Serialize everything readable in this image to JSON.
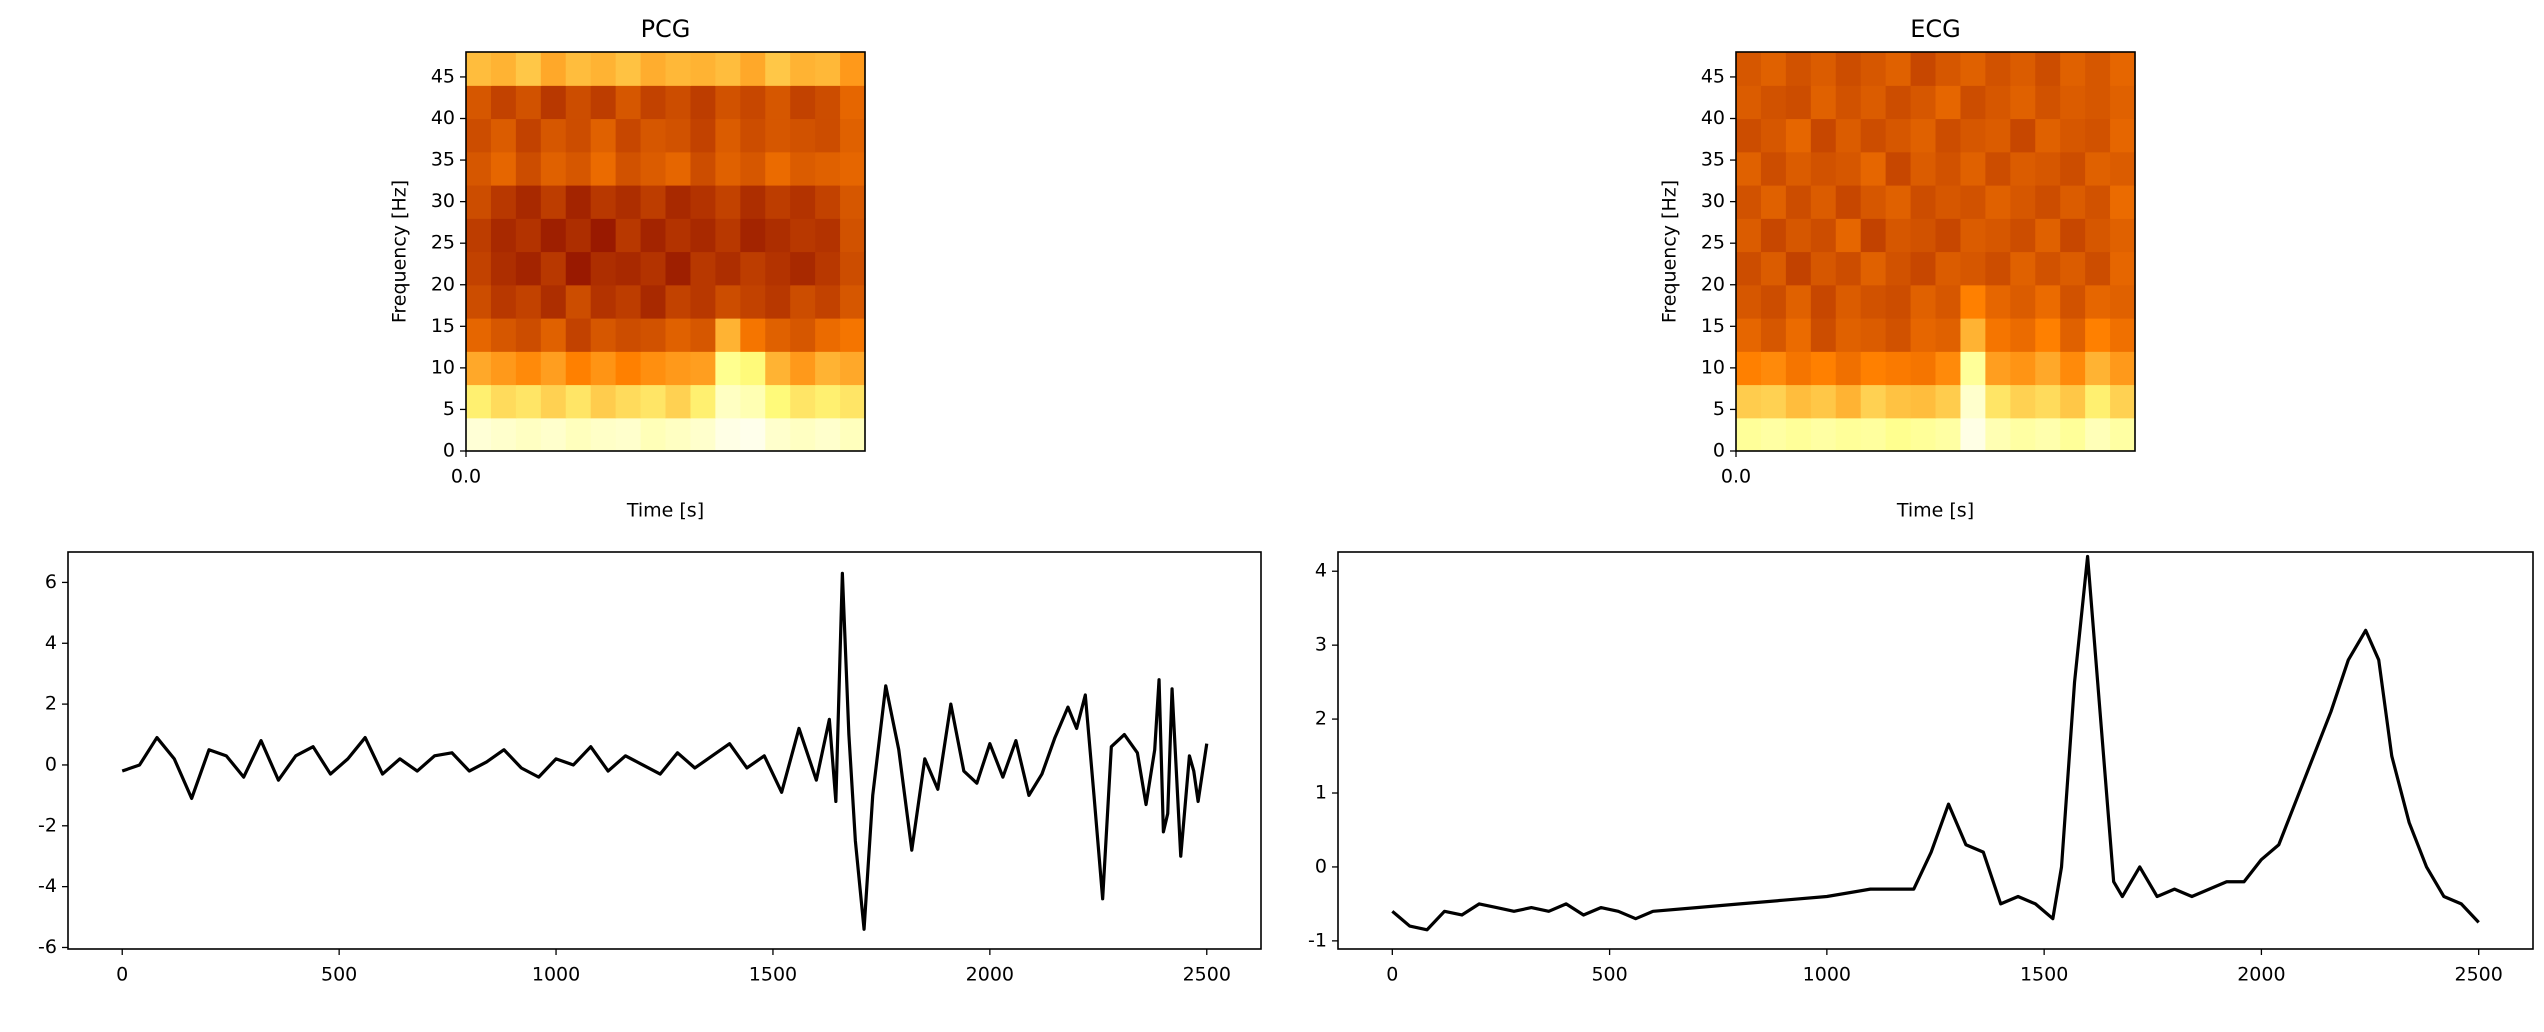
{
  "chart_data": [
    {
      "type": "heatmap",
      "title": "PCG",
      "xlabel": "Time [s]",
      "ylabel": "Frequency [Hz]",
      "cmap": "afmhot",
      "xlim": [
        0,
        5
      ],
      "xticks": [
        {
          "value": 0,
          "label": "0.0"
        }
      ],
      "ylim": [
        0,
        48
      ],
      "yticks": [
        0,
        5,
        10,
        15,
        20,
        25,
        30,
        35,
        40,
        45
      ],
      "z": [
        [
          0.92,
          0.9,
          0.88,
          0.9,
          0.87,
          0.89,
          0.9,
          0.86,
          0.88,
          0.9,
          0.95,
          0.96,
          0.9,
          0.88,
          0.9,
          0.87
        ],
        [
          0.72,
          0.68,
          0.7,
          0.66,
          0.7,
          0.65,
          0.68,
          0.7,
          0.66,
          0.72,
          0.88,
          0.85,
          0.74,
          0.7,
          0.72,
          0.7
        ],
        [
          0.58,
          0.55,
          0.52,
          0.56,
          0.5,
          0.54,
          0.5,
          0.53,
          0.55,
          0.56,
          0.78,
          0.74,
          0.6,
          0.55,
          0.6,
          0.58
        ],
        [
          0.45,
          0.42,
          0.4,
          0.44,
          0.38,
          0.42,
          0.4,
          0.41,
          0.44,
          0.42,
          0.6,
          0.48,
          0.44,
          0.42,
          0.46,
          0.48
        ],
        [
          0.4,
          0.36,
          0.38,
          0.34,
          0.4,
          0.35,
          0.37,
          0.33,
          0.38,
          0.36,
          0.4,
          0.38,
          0.36,
          0.4,
          0.38,
          0.42
        ],
        [
          0.38,
          0.34,
          0.32,
          0.36,
          0.3,
          0.34,
          0.33,
          0.35,
          0.31,
          0.36,
          0.34,
          0.37,
          0.35,
          0.33,
          0.36,
          0.4
        ],
        [
          0.37,
          0.33,
          0.35,
          0.31,
          0.34,
          0.3,
          0.36,
          0.32,
          0.35,
          0.33,
          0.36,
          0.32,
          0.34,
          0.36,
          0.35,
          0.41
        ],
        [
          0.4,
          0.36,
          0.33,
          0.37,
          0.32,
          0.36,
          0.34,
          0.37,
          0.33,
          0.35,
          0.38,
          0.34,
          0.37,
          0.35,
          0.38,
          0.42
        ],
        [
          0.42,
          0.45,
          0.4,
          0.44,
          0.42,
          0.46,
          0.41,
          0.43,
          0.45,
          0.4,
          0.44,
          0.42,
          0.46,
          0.43,
          0.44,
          0.45
        ],
        [
          0.4,
          0.43,
          0.38,
          0.42,
          0.4,
          0.44,
          0.39,
          0.42,
          0.41,
          0.38,
          0.43,
          0.4,
          0.42,
          0.41,
          0.4,
          0.44
        ],
        [
          0.42,
          0.38,
          0.41,
          0.36,
          0.4,
          0.37,
          0.42,
          0.38,
          0.4,
          0.37,
          0.41,
          0.39,
          0.42,
          0.38,
          0.4,
          0.45
        ],
        [
          0.62,
          0.6,
          0.64,
          0.58,
          0.62,
          0.6,
          0.63,
          0.59,
          0.61,
          0.6,
          0.62,
          0.58,
          0.64,
          0.6,
          0.61,
          0.55
        ]
      ]
    },
    {
      "type": "heatmap",
      "title": "ECG",
      "xlabel": "Time [s]",
      "ylabel": "Frequency [Hz]",
      "cmap": "afmhot",
      "xlim": [
        0,
        5
      ],
      "xticks": [
        {
          "value": 0,
          "label": "0.0"
        }
      ],
      "ylim": [
        0,
        48
      ],
      "yticks": [
        0,
        5,
        10,
        15,
        20,
        25,
        30,
        35,
        40,
        45
      ],
      "z": [
        [
          0.8,
          0.82,
          0.8,
          0.82,
          0.8,
          0.81,
          0.78,
          0.8,
          0.82,
          0.95,
          0.85,
          0.82,
          0.84,
          0.8,
          0.86,
          0.82
        ],
        [
          0.65,
          0.66,
          0.62,
          0.64,
          0.6,
          0.66,
          0.63,
          0.62,
          0.65,
          0.9,
          0.7,
          0.66,
          0.68,
          0.64,
          0.72,
          0.66
        ],
        [
          0.5,
          0.52,
          0.48,
          0.5,
          0.47,
          0.5,
          0.49,
          0.48,
          0.52,
          0.8,
          0.56,
          0.54,
          0.58,
          0.52,
          0.6,
          0.55
        ],
        [
          0.45,
          0.42,
          0.46,
          0.4,
          0.44,
          0.43,
          0.41,
          0.45,
          0.44,
          0.6,
          0.48,
          0.46,
          0.5,
          0.44,
          0.5,
          0.47
        ],
        [
          0.42,
          0.4,
          0.44,
          0.39,
          0.43,
          0.41,
          0.4,
          0.44,
          0.42,
          0.5,
          0.45,
          0.43,
          0.46,
          0.41,
          0.45,
          0.44
        ],
        [
          0.4,
          0.43,
          0.38,
          0.42,
          0.4,
          0.44,
          0.41,
          0.39,
          0.43,
          0.42,
          0.4,
          0.44,
          0.41,
          0.43,
          0.4,
          0.45
        ],
        [
          0.43,
          0.39,
          0.42,
          0.4,
          0.45,
          0.38,
          0.42,
          0.41,
          0.39,
          0.43,
          0.42,
          0.4,
          0.44,
          0.39,
          0.42,
          0.44
        ],
        [
          0.41,
          0.44,
          0.4,
          0.43,
          0.39,
          0.42,
          0.44,
          0.4,
          0.42,
          0.41,
          0.44,
          0.42,
          0.4,
          0.43,
          0.41,
          0.46
        ],
        [
          0.44,
          0.4,
          0.43,
          0.41,
          0.42,
          0.45,
          0.39,
          0.43,
          0.41,
          0.44,
          0.4,
          0.43,
          0.42,
          0.4,
          0.44,
          0.43
        ],
        [
          0.4,
          0.42,
          0.45,
          0.39,
          0.43,
          0.4,
          0.42,
          0.44,
          0.4,
          0.42,
          0.43,
          0.39,
          0.44,
          0.42,
          0.41,
          0.45
        ],
        [
          0.43,
          0.41,
          0.4,
          0.44,
          0.41,
          0.43,
          0.4,
          0.42,
          0.45,
          0.4,
          0.42,
          0.44,
          0.41,
          0.43,
          0.42,
          0.44
        ],
        [
          0.42,
          0.44,
          0.41,
          0.43,
          0.4,
          0.42,
          0.44,
          0.39,
          0.42,
          0.44,
          0.41,
          0.43,
          0.4,
          0.44,
          0.42,
          0.45
        ]
      ]
    },
    {
      "type": "line",
      "xlim": [
        -125,
        2625
      ],
      "xticks": [
        0,
        500,
        1000,
        1500,
        2000,
        2500
      ],
      "ylim": [
        -6.05,
        7.0
      ],
      "yticks": [
        -6,
        -4,
        -2,
        0,
        2,
        4,
        6
      ],
      "x": [
        0,
        40,
        80,
        120,
        160,
        200,
        240,
        280,
        320,
        360,
        400,
        440,
        480,
        520,
        560,
        600,
        640,
        680,
        720,
        760,
        800,
        840,
        880,
        920,
        960,
        1000,
        1040,
        1080,
        1120,
        1160,
        1200,
        1240,
        1280,
        1320,
        1360,
        1400,
        1440,
        1480,
        1520,
        1560,
        1600,
        1630,
        1645,
        1660,
        1675,
        1690,
        1710,
        1730,
        1760,
        1790,
        1820,
        1850,
        1880,
        1910,
        1940,
        1970,
        2000,
        2030,
        2060,
        2090,
        2120,
        2150,
        2180,
        2200,
        2220,
        2240,
        2260,
        2280,
        2310,
        2340,
        2360,
        2380,
        2390,
        2400,
        2410,
        2420,
        2440,
        2460,
        2470,
        2480,
        2500
      ],
      "series": [
        {
          "color": "#000000",
          "values": [
            -0.2,
            0.0,
            0.9,
            0.2,
            -1.1,
            0.5,
            0.3,
            -0.4,
            0.8,
            -0.5,
            0.3,
            0.6,
            -0.3,
            0.2,
            0.9,
            -0.3,
            0.2,
            -0.2,
            0.3,
            0.4,
            -0.2,
            0.1,
            0.5,
            -0.1,
            -0.4,
            0.2,
            0.0,
            0.6,
            -0.2,
            0.3,
            0.0,
            -0.3,
            0.4,
            -0.1,
            0.3,
            0.7,
            -0.1,
            0.3,
            -0.9,
            1.2,
            -0.5,
            1.5,
            -1.2,
            6.3,
            1.0,
            -2.5,
            -5.4,
            -1.0,
            2.6,
            0.5,
            -2.8,
            0.2,
            -0.8,
            2.0,
            -0.2,
            -0.6,
            0.7,
            -0.4,
            0.8,
            -1.0,
            -0.3,
            0.9,
            1.9,
            1.2,
            2.3,
            -1.0,
            -4.4,
            0.6,
            1.0,
            0.4,
            -1.3,
            0.5,
            2.8,
            -2.2,
            -1.6,
            2.5,
            -3.0,
            0.3,
            -0.2,
            -1.2,
            0.7
          ]
        }
      ]
    },
    {
      "type": "line",
      "xlim": [
        -125,
        2625
      ],
      "xticks": [
        0,
        500,
        1000,
        1500,
        2000,
        2500
      ],
      "ylim": [
        -1.11,
        4.26
      ],
      "yticks": [
        -1,
        0,
        1,
        2,
        3,
        4
      ],
      "x": [
        0,
        40,
        80,
        120,
        160,
        200,
        240,
        280,
        320,
        360,
        400,
        440,
        480,
        520,
        560,
        600,
        700,
        800,
        900,
        1000,
        1100,
        1200,
        1240,
        1280,
        1320,
        1360,
        1400,
        1440,
        1480,
        1520,
        1540,
        1570,
        1600,
        1630,
        1660,
        1680,
        1720,
        1760,
        1800,
        1840,
        1880,
        1920,
        1960,
        2000,
        2040,
        2080,
        2120,
        2160,
        2200,
        2240,
        2270,
        2300,
        2340,
        2380,
        2420,
        2460,
        2500
      ],
      "series": [
        {
          "color": "#000000",
          "values": [
            -0.6,
            -0.8,
            -0.85,
            -0.6,
            -0.65,
            -0.5,
            -0.55,
            -0.6,
            -0.55,
            -0.6,
            -0.5,
            -0.65,
            -0.55,
            -0.6,
            -0.7,
            -0.6,
            -0.55,
            -0.5,
            -0.45,
            -0.4,
            -0.3,
            -0.3,
            0.2,
            0.85,
            0.3,
            0.2,
            -0.5,
            -0.4,
            -0.5,
            -0.7,
            0.0,
            2.5,
            4.2,
            2.0,
            -0.2,
            -0.4,
            0.0,
            -0.4,
            -0.3,
            -0.4,
            -0.3,
            -0.2,
            -0.2,
            0.1,
            0.3,
            0.9,
            1.5,
            2.1,
            2.8,
            3.2,
            2.8,
            1.5,
            0.6,
            0.0,
            -0.4,
            -0.5,
            -0.75
          ]
        }
      ]
    }
  ]
}
